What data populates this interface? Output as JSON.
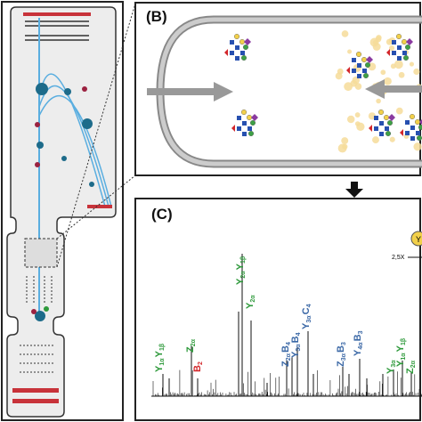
{
  "panels": {
    "b": "(B)",
    "c": "(C)"
  },
  "inset": {
    "top": "Y",
    "side": "2,5X"
  },
  "colors": {
    "green": "#2f9a3c",
    "red": "#d3262a",
    "blue": "#3b68a6"
  },
  "spectrum_labels": [
    {
      "color": "green",
      "parts": [
        {
          "t": "Y",
          "s": "1α"
        },
        {
          "t": "Y",
          "s": "1β"
        }
      ]
    },
    {
      "color": "green",
      "parts": [
        {
          "t": "Z",
          "s": "2α"
        }
      ]
    },
    {
      "color": "red",
      "parts": [
        {
          "t": "B",
          "s": "2"
        }
      ]
    },
    {
      "color": "green",
      "parts": [
        {
          "t": "Y",
          "s": "2α"
        },
        {
          "t": "Y",
          "s": "1β"
        }
      ]
    },
    {
      "color": "green",
      "parts": [
        {
          "t": "Y",
          "s": "2α"
        }
      ]
    },
    {
      "color": "blue",
      "parts": [
        {
          "t": "Z",
          "s": "2α"
        },
        {
          "t": "B",
          "s": "4"
        }
      ]
    },
    {
      "color": "blue",
      "parts": [
        {
          "t": "Y",
          "s": "3α"
        },
        {
          "t": "B",
          "s": "4"
        }
      ]
    },
    {
      "color": "blue",
      "parts": [
        {
          "t": "Y",
          "s": "3α"
        },
        {
          "t": "C",
          "s": "4"
        }
      ]
    },
    {
      "color": "blue",
      "parts": [
        {
          "t": "Z",
          "s": "3α"
        },
        {
          "t": "B",
          "s": "3"
        }
      ]
    },
    {
      "color": "blue",
      "parts": [
        {
          "t": "Y",
          "s": "4α"
        },
        {
          "t": "B",
          "s": "3"
        }
      ]
    },
    {
      "color": "green",
      "parts": [
        {
          "t": "Y",
          "s": "3α"
        }
      ]
    },
    {
      "color": "green",
      "parts": [
        {
          "t": "Y",
          "s": "1α"
        },
        {
          "t": "Y",
          "s": "1β"
        }
      ]
    },
    {
      "color": "green",
      "parts": [
        {
          "t": "Z",
          "s": "2α"
        }
      ]
    }
  ]
}
